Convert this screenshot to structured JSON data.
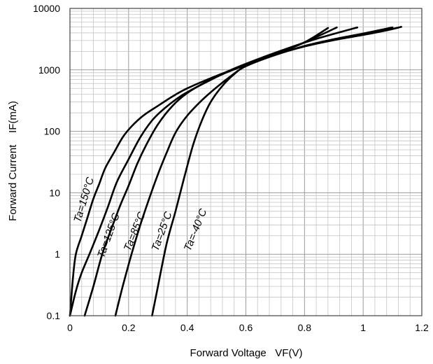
{
  "chart_data": {
    "type": "line",
    "title": "",
    "xlabel": "Forward Voltage   VF(V)",
    "ylabel": "Forward Current    IF(mA)",
    "xlim": [
      0,
      1.2
    ],
    "ylim": [
      0.1,
      10000
    ],
    "y_scale": "log",
    "grid": true,
    "x_ticks": [
      "0",
      "0.2",
      "0.4",
      "0.6",
      "0.8",
      "1",
      "1.2"
    ],
    "y_ticks": [
      "0.1",
      "1",
      "10",
      "100",
      "1000",
      "10000"
    ],
    "series": [
      {
        "name": "Ta=150°C",
        "points": [
          [
            0.0,
            0.1
          ],
          [
            0.01,
            0.4
          ],
          [
            0.02,
            1
          ],
          [
            0.04,
            2
          ],
          [
            0.06,
            4
          ],
          [
            0.08,
            8
          ],
          [
            0.1,
            14
          ],
          [
            0.12,
            25
          ],
          [
            0.15,
            45
          ],
          [
            0.18,
            80
          ],
          [
            0.21,
            120
          ],
          [
            0.25,
            180
          ],
          [
            0.3,
            260
          ],
          [
            0.35,
            370
          ],
          [
            0.4,
            500
          ],
          [
            0.5,
            800
          ],
          [
            0.6,
            1200
          ],
          [
            0.7,
            1800
          ],
          [
            0.8,
            2800
          ],
          [
            0.88,
            4800
          ]
        ]
      },
      {
        "name": "Ta=125°C",
        "points": [
          [
            0.0,
            0.1
          ],
          [
            0.02,
            0.25
          ],
          [
            0.04,
            0.5
          ],
          [
            0.07,
            1.1
          ],
          [
            0.1,
            2.5
          ],
          [
            0.13,
            6
          ],
          [
            0.16,
            15
          ],
          [
            0.2,
            35
          ],
          [
            0.24,
            80
          ],
          [
            0.28,
            150
          ],
          [
            0.32,
            230
          ],
          [
            0.38,
            380
          ],
          [
            0.45,
            580
          ],
          [
            0.52,
            850
          ],
          [
            0.6,
            1200
          ],
          [
            0.7,
            1800
          ],
          [
            0.8,
            2800
          ],
          [
            0.91,
            4900
          ]
        ]
      },
      {
        "name": "Ta=85°C",
        "points": [
          [
            0.05,
            0.1
          ],
          [
            0.08,
            0.3
          ],
          [
            0.11,
            1
          ],
          [
            0.14,
            2.5
          ],
          [
            0.17,
            6
          ],
          [
            0.2,
            13
          ],
          [
            0.23,
            30
          ],
          [
            0.26,
            60
          ],
          [
            0.3,
            130
          ],
          [
            0.35,
            260
          ],
          [
            0.4,
            420
          ],
          [
            0.48,
            700
          ],
          [
            0.56,
            1050
          ],
          [
            0.65,
            1550
          ],
          [
            0.75,
            2300
          ],
          [
            0.85,
            3300
          ],
          [
            0.98,
            4900
          ]
        ]
      },
      {
        "name": "Ta=25°C",
        "points": [
          [
            0.155,
            0.1
          ],
          [
            0.18,
            0.3
          ],
          [
            0.21,
            1
          ],
          [
            0.24,
            3
          ],
          [
            0.27,
            8
          ],
          [
            0.3,
            20
          ],
          [
            0.33,
            45
          ],
          [
            0.36,
            95
          ],
          [
            0.4,
            180
          ],
          [
            0.45,
            320
          ],
          [
            0.5,
            520
          ],
          [
            0.55,
            800
          ],
          [
            0.6,
            1150
          ],
          [
            0.7,
            1750
          ],
          [
            0.8,
            2450
          ],
          [
            0.9,
            3150
          ],
          [
            1.0,
            3900
          ],
          [
            1.1,
            4900
          ]
        ]
      },
      {
        "name": "Ta=-40°C",
        "points": [
          [
            0.28,
            0.1
          ],
          [
            0.3,
            0.3
          ],
          [
            0.33,
            1.5
          ],
          [
            0.36,
            5
          ],
          [
            0.39,
            18
          ],
          [
            0.42,
            60
          ],
          [
            0.45,
            150
          ],
          [
            0.48,
            300
          ],
          [
            0.52,
            550
          ],
          [
            0.56,
            850
          ],
          [
            0.6,
            1150
          ],
          [
            0.7,
            1750
          ],
          [
            0.8,
            2400
          ],
          [
            0.9,
            3050
          ],
          [
            1.0,
            3700
          ],
          [
            1.08,
            4400
          ],
          [
            1.13,
            5000
          ]
        ]
      }
    ]
  }
}
